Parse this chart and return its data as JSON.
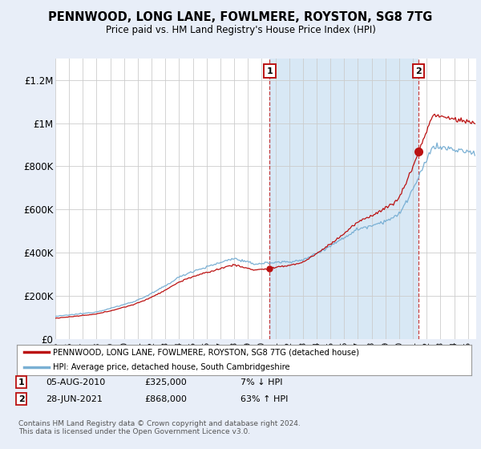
{
  "title": "PENNWOOD, LONG LANE, FOWLMERE, ROYSTON, SG8 7TG",
  "subtitle": "Price paid vs. HM Land Registry's House Price Index (HPI)",
  "background_color": "#e8eef8",
  "plot_bg_color": "#ffffff",
  "grid_color": "#cccccc",
  "red_line_color": "#bb1111",
  "blue_line_color": "#7ab0d4",
  "shade_color": "#d8e8f5",
  "ylim": [
    0,
    1300000
  ],
  "yticks": [
    0,
    200000,
    400000,
    600000,
    800000,
    1000000,
    1200000
  ],
  "ytick_labels": [
    "£0",
    "£200K",
    "£400K",
    "£600K",
    "£800K",
    "£1M",
    "£1.2M"
  ],
  "legend_label1": "PENNWOOD, LONG LANE, FOWLMERE, ROYSTON, SG8 7TG (detached house)",
  "legend_label2": "HPI: Average price, detached house, South Cambridgeshire",
  "footer": "Contains HM Land Registry data © Crown copyright and database right 2024.\nThis data is licensed under the Open Government Licence v3.0."
}
